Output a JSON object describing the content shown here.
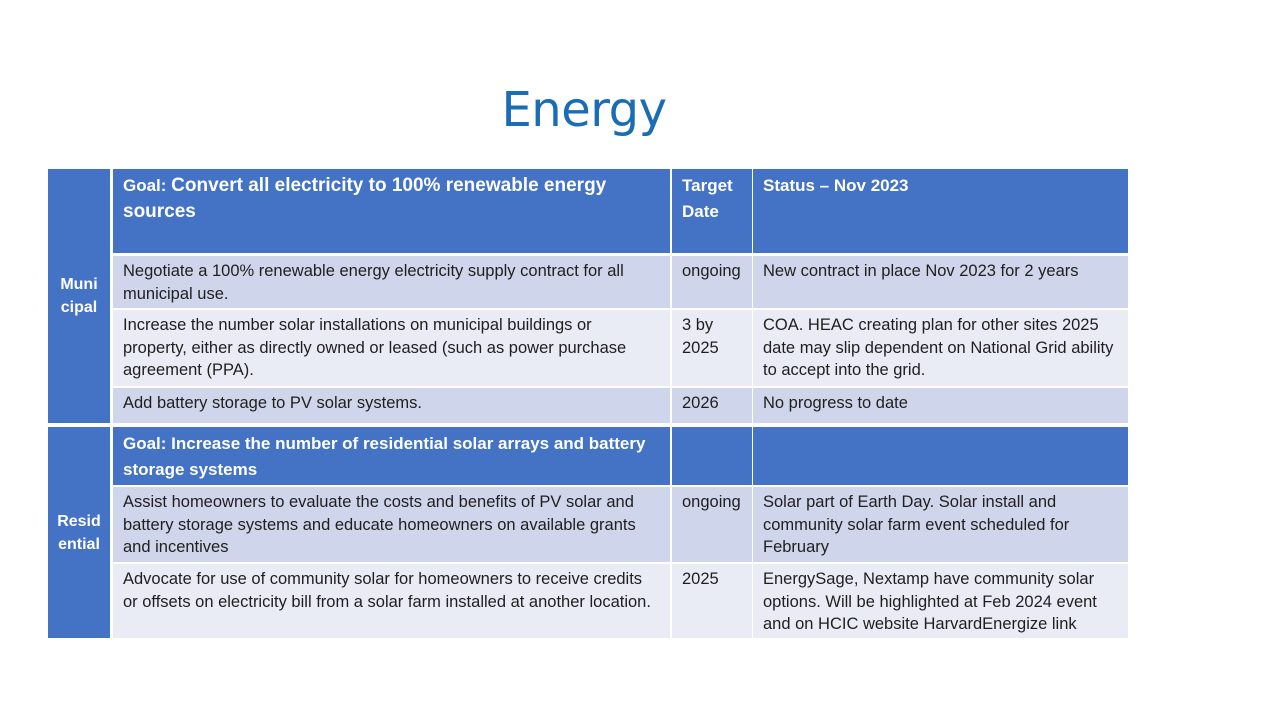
{
  "title": "Energy",
  "sections": {
    "municipal": {
      "label_line1": "Muni",
      "label_line2": "cipal",
      "goal_prefix": "Goal: ",
      "goal_text": "Convert all electricity  to 100% renewable energy sources",
      "header_target": "Target Date",
      "header_status": "Status – Nov 2023",
      "rows": [
        {
          "task": "Negotiate a 100% renewable energy electricity supply contract for all municipal use.",
          "target": "ongoing",
          "status": "New contract in place Nov 2023 for 2 years"
        },
        {
          "task": "Increase the number solar installations on municipal buildings or property, either as directly owned or leased (such as power purchase agreement (PPA).",
          "target": "3 by 2025",
          "status": "COA.  HEAC creating plan for other sites 2025 date may slip dependent on National Grid ability to accept into the grid."
        },
        {
          "task": "Add battery storage to PV solar systems.",
          "target": "2026",
          "status": "No progress to date"
        }
      ]
    },
    "residential": {
      "label_line1": "Resid",
      "label_line2": "ential",
      "goal_text": "Goal: Increase the number of residential solar arrays and battery storage systems",
      "rows": [
        {
          "task": "Assist homeowners to evaluate the costs and benefits of PV solar and battery storage systems and educate homeowners on available grants and incentives",
          "target": "ongoing",
          "status": "Solar part of Earth Day.  Solar install and community solar farm event scheduled for February"
        },
        {
          "task": "Advocate for use of community solar for homeowners to receive credits or offsets on electricity bill from a solar farm installed at another location.",
          "target": "2025",
          "status": "EnergySage, Nextamp have community solar options.  Will be highlighted at Feb 2024 event and on HCIC website HarvardEnergize link"
        }
      ]
    }
  },
  "colors": {
    "title": "#1a6db5",
    "header": "#4472c4",
    "row_dark": "#cfd5ea",
    "row_light": "#e9ebf5"
  }
}
